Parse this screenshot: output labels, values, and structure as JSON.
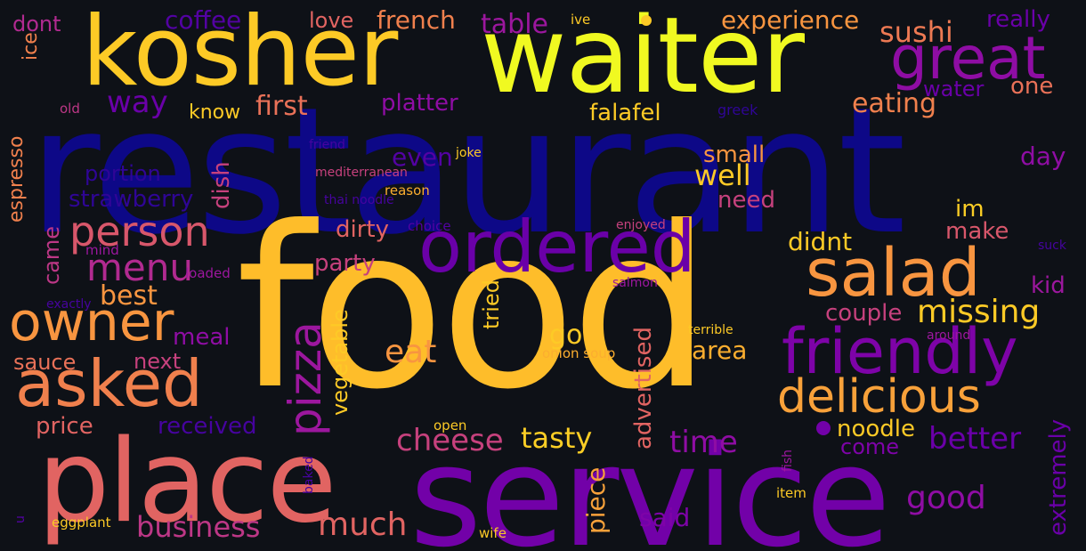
{
  "palette": {
    "background": "#0e1117",
    "navy": "#0d0887",
    "indigo": "#46039f",
    "purple": "#7201a8",
    "magenta": "#9c179e",
    "rose": "#bd3786",
    "coral": "#d8576b",
    "orange": "#ed7953",
    "amber": "#fb9f3a",
    "gold": "#fdca26",
    "yellow": "#f0f921"
  },
  "words": [
    {
      "text": "restaurant",
      "color": "#0d0887"
    },
    {
      "text": "food",
      "color": "#febd2a"
    },
    {
      "text": "waiter",
      "color": "#f0f921"
    },
    {
      "text": "kosher",
      "color": "#fdca26"
    },
    {
      "text": "service",
      "color": "#7201a8"
    },
    {
      "text": "place",
      "color": "#e16462"
    },
    {
      "text": "great",
      "color": "#8f0da4"
    },
    {
      "text": "salad",
      "color": "#f89540"
    },
    {
      "text": "ordered",
      "color": "#6a00a8"
    },
    {
      "text": "friendly",
      "color": "#7e03a8"
    },
    {
      "text": "asked",
      "color": "#f0804d"
    },
    {
      "text": "owner",
      "color": "#f89540"
    },
    {
      "text": "delicious",
      "color": "#f8a13a"
    },
    {
      "text": "person",
      "color": "#d8576b"
    },
    {
      "text": "menu",
      "color": "#b12a90"
    },
    {
      "text": "pizza",
      "color": "#9c179e"
    },
    {
      "text": "missing",
      "color": "#fdca26"
    },
    {
      "text": "cheese",
      "color": "#c6417d"
    },
    {
      "text": "better",
      "color": "#6a00a8"
    },
    {
      "text": "business",
      "color": "#bd3786"
    },
    {
      "text": "much",
      "color": "#e16462"
    },
    {
      "text": "good",
      "color": "#8f0da4"
    },
    {
      "text": "time",
      "color": "#8f0da4"
    },
    {
      "text": "tasty",
      "color": "#fcce25"
    },
    {
      "text": "sushi",
      "color": "#ed7953"
    },
    {
      "text": "experience",
      "color": "#f89540"
    },
    {
      "text": "french",
      "color": "#f0804d"
    },
    {
      "text": "table",
      "color": "#9c179e"
    },
    {
      "text": "coffee",
      "color": "#5302a3"
    },
    {
      "text": "love",
      "color": "#e16462"
    },
    {
      "text": "dont",
      "color": "#b12a90"
    },
    {
      "text": "really",
      "color": "#6a00a8"
    },
    {
      "text": "way",
      "color": "#6a00a8"
    },
    {
      "text": "first",
      "color": "#e97158"
    },
    {
      "text": "know",
      "color": "#fdca26"
    },
    {
      "text": "platter",
      "color": "#8f0da4"
    },
    {
      "text": "falafel",
      "color": "#fdca26"
    },
    {
      "text": "eating",
      "color": "#f0804d"
    },
    {
      "text": "water",
      "color": "#6a00a8"
    },
    {
      "text": "one",
      "color": "#e97158"
    },
    {
      "text": "even",
      "color": "#5302a3"
    },
    {
      "text": "small",
      "color": "#f89540"
    },
    {
      "text": "well",
      "color": "#fdca26"
    },
    {
      "text": "day",
      "color": "#8f0da4"
    },
    {
      "text": "need",
      "color": "#c6417d"
    },
    {
      "text": "im",
      "color": "#fcce25"
    },
    {
      "text": "make",
      "color": "#d8576b"
    },
    {
      "text": "didnt",
      "color": "#fdca26"
    },
    {
      "text": "kid",
      "color": "#9c179e"
    },
    {
      "text": "couple",
      "color": "#c6417d"
    },
    {
      "text": "party",
      "color": "#c6417d"
    },
    {
      "text": "dirty",
      "color": "#e16462"
    },
    {
      "text": "best",
      "color": "#f89540"
    },
    {
      "text": "meal",
      "color": "#8f0da4"
    },
    {
      "text": "next",
      "color": "#c6417d"
    },
    {
      "text": "sauce",
      "color": "#e97158"
    },
    {
      "text": "eat",
      "color": "#f89540"
    },
    {
      "text": "go",
      "color": "#fdca26"
    },
    {
      "text": "area",
      "color": "#fcae2f"
    },
    {
      "text": "price",
      "color": "#e16462"
    },
    {
      "text": "received",
      "color": "#46039f"
    },
    {
      "text": "noodle",
      "color": "#fdca26"
    },
    {
      "text": "come",
      "color": "#7e03a8"
    },
    {
      "text": "said",
      "color": "#7e03a8"
    },
    {
      "text": "piece",
      "color": "#f8a13a"
    },
    {
      "text": "extremely",
      "color": "#6a00a8"
    },
    {
      "text": "advertised",
      "color": "#e16462"
    },
    {
      "text": "vegetable",
      "color": "#fdca26"
    },
    {
      "text": "tried",
      "color": "#fdca26"
    },
    {
      "text": "dish",
      "color": "#c6417d"
    },
    {
      "text": "came",
      "color": "#bd3786"
    },
    {
      "text": "espresso",
      "color": "#f0804d"
    },
    {
      "text": "ice",
      "color": "#2f0596"
    },
    {
      "text": "fish",
      "color": "#2f0596"
    },
    {
      "text": "u",
      "color": "#f0804d"
    },
    {
      "text": "baked",
      "color": "#bd3786"
    },
    {
      "text": "portion",
      "color": "#fdca26"
    },
    {
      "text": "strawberry",
      "color": "#2f0596"
    },
    {
      "text": "old",
      "color": "#46039f"
    },
    {
      "text": "ive",
      "color": "#fdca26"
    },
    {
      "text": "greek",
      "color": "#c6417d"
    },
    {
      "text": "friend",
      "color": "#fcae2f"
    },
    {
      "text": "joke",
      "color": "#46039f"
    },
    {
      "text": "mediterranean",
      "color": "#5302a3"
    },
    {
      "text": "reason",
      "color": "#c6417d"
    },
    {
      "text": "thai noodle",
      "color": "#9c179e"
    },
    {
      "text": "choice",
      "color": "#9c179e"
    },
    {
      "text": "enjoyed",
      "color": "#9c179e"
    },
    {
      "text": "mind",
      "color": "#46039f"
    },
    {
      "text": "loaded",
      "color": "#46039f"
    },
    {
      "text": "salmon",
      "color": "#fdca26"
    },
    {
      "text": "suck",
      "color": "#9c179e"
    },
    {
      "text": "exactly",
      "color": "#fcae2f"
    },
    {
      "text": "terrible",
      "color": "#fdca26"
    },
    {
      "text": "around",
      "color": "#9c179e"
    },
    {
      "text": "onion soup",
      "color": "#5302a3"
    },
    {
      "text": "open",
      "color": "#46039f"
    },
    {
      "text": "item",
      "color": "#fdca26"
    },
    {
      "text": "eggplant",
      "color": "#fdca26"
    },
    {
      "text": "wife",
      "color": "#fdca26"
    }
  ]
}
